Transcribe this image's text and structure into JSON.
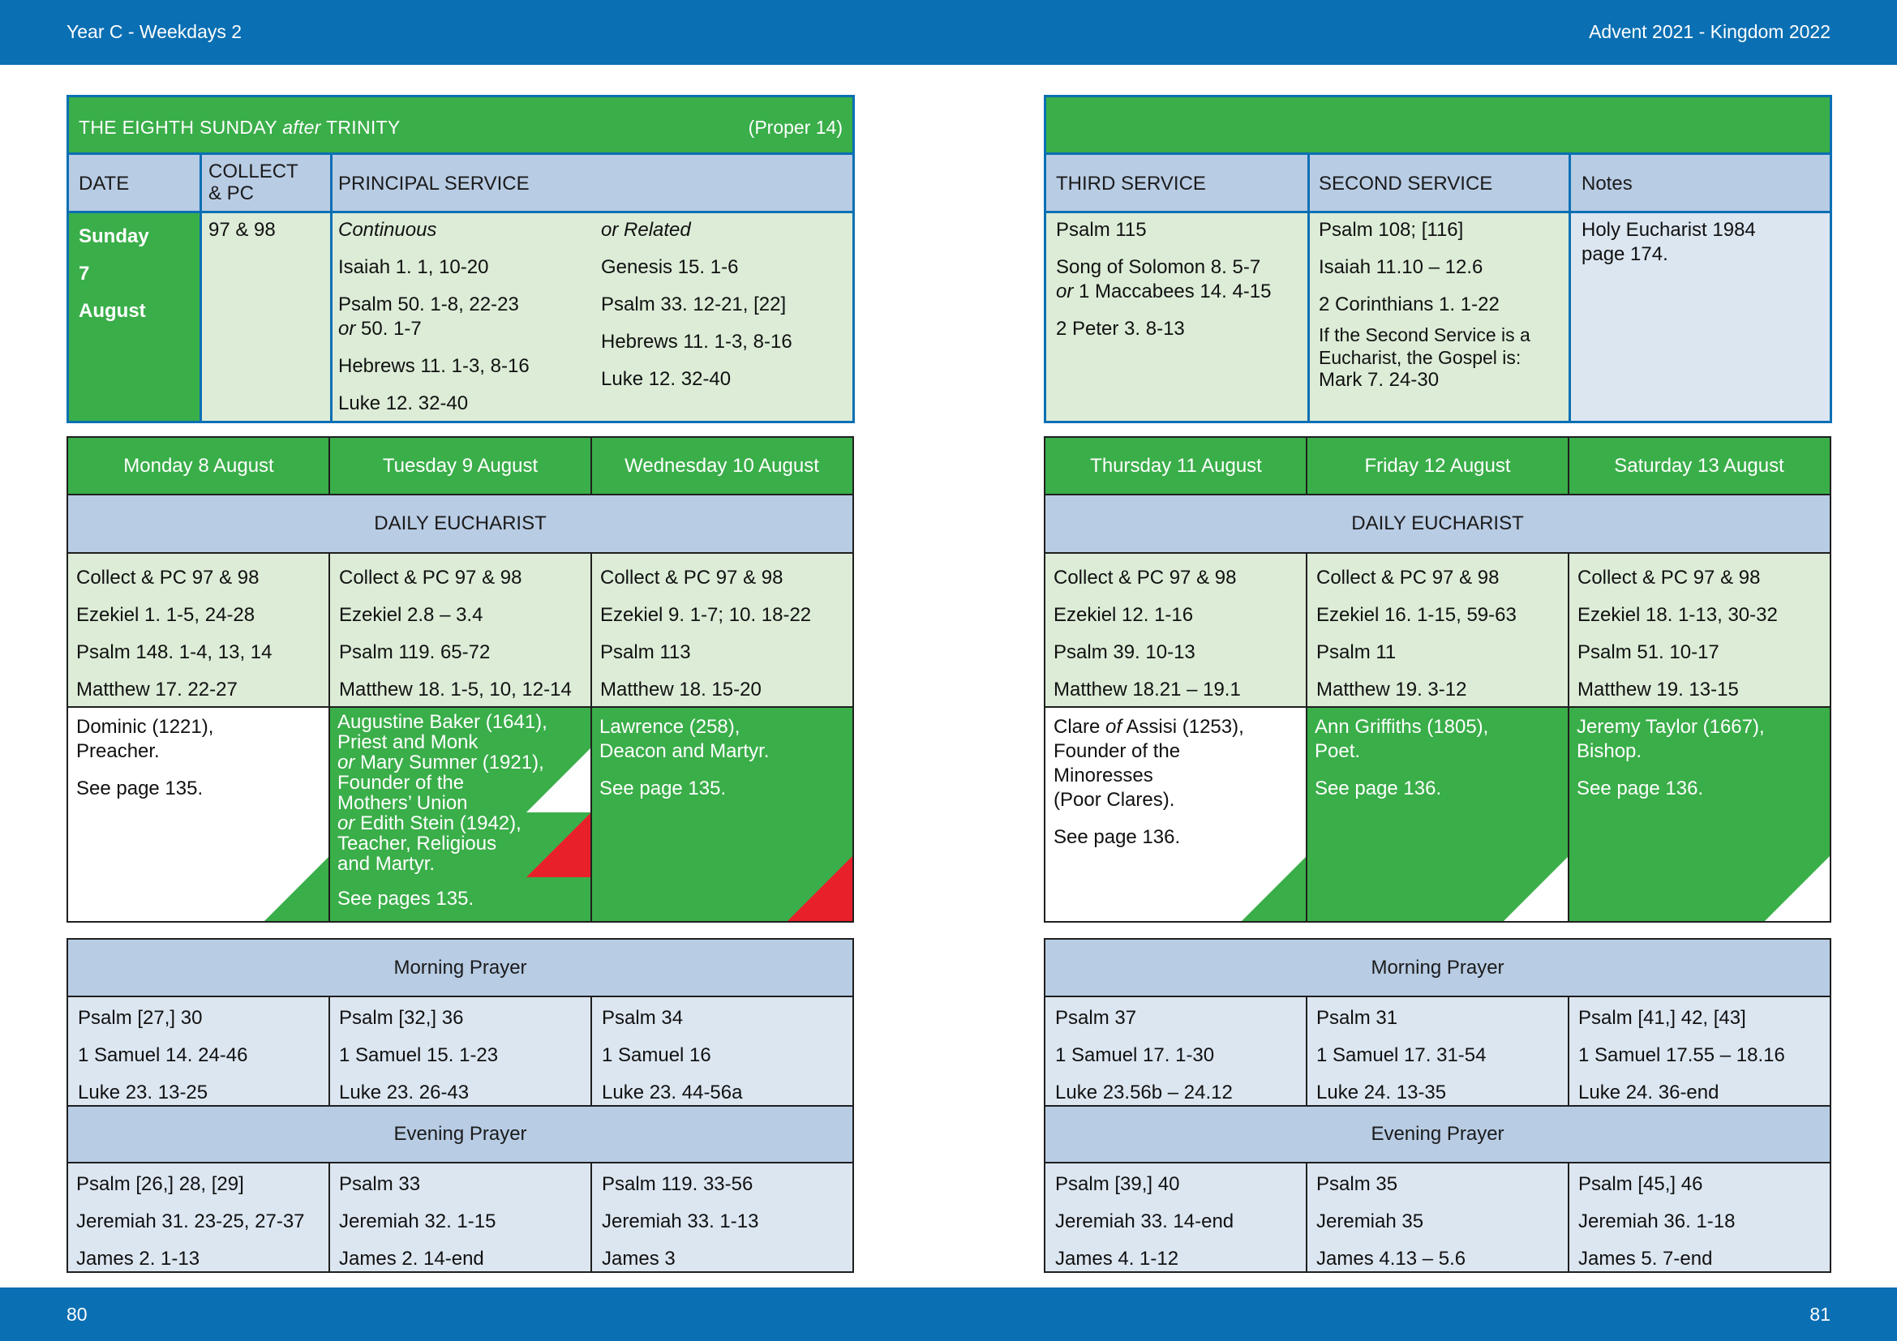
{
  "header": {
    "left": "Year C - Weekdays 2",
    "right": "Advent  2021 - Kingdom 2022"
  },
  "footer": {
    "left_page": "80",
    "right_page": "81"
  },
  "sunday": {
    "title_pre": "THE EIGHTH SUNDAY ",
    "title_after": "after",
    "title_post": " TRINITY",
    "proper": "(Proper 14)",
    "col_date": "DATE",
    "col_collect_1": "COLLECT",
    "col_collect_2": "& PC",
    "col_principal": "PRINCIPAL SERVICE",
    "date_1": "Sunday",
    "date_2": "7",
    "date_3": "August",
    "collect": "97 & 98",
    "continuous_head": "Continuous",
    "continuous": [
      "Isaiah 1. 1, 10-20",
      "Psalm 50. 1-8, 22-23",
      "Hebrews 11. 1-3, 8-16",
      "Luke 12. 32-40"
    ],
    "continuous_or": "or",
    "continuous_or_text": " 50. 1-7",
    "related_head": "or Related",
    "related": [
      "Genesis 15. 1-6",
      "Psalm 33. 12-21, [22]",
      "Hebrews 11. 1-3, 8-16",
      "Luke 12. 32-40"
    ],
    "col_third": "THIRD SERVICE",
    "col_second": "SECOND SERVICE",
    "col_notes": "Notes",
    "third": [
      "Psalm 115",
      "Song of Solomon 8. 5-7",
      "1 Maccabees 14. 4-15",
      "2 Peter 3. 8-13"
    ],
    "third_or": "or",
    "second": [
      "Psalm 108; [116]",
      "Isaiah 11.10 – 12.6",
      "2 Corinthians 1. 1-22"
    ],
    "second_note": [
      "If the Second Service is a",
      "Eucharist, the Gospel is:"
    ],
    "second_gospel": "Mark 7. 24-30",
    "notes": [
      "Holy Eucharist 1984",
      "page 174."
    ]
  },
  "daily_eucharist_label": "DAILY EUCHARIST",
  "morning_prayer_label": "Morning Prayer",
  "evening_prayer_label": "Evening Prayer",
  "days": [
    {
      "name": "Monday 8 August",
      "eucharist": [
        "Collect & PC 97 & 98",
        "Ezekiel 1. 1-5, 24-28",
        "Psalm 148. 1-4, 13, 14",
        "Matthew 17. 22-27"
      ],
      "commem": [
        "Dominic (1221),",
        "Preacher."
      ],
      "see": "See page 135.",
      "morning": [
        "Psalm [27,] 30",
        "1 Samuel 14. 24-46",
        "Luke 23. 13-25"
      ],
      "evening": [
        "Psalm [26,] 28, [29]",
        "Jeremiah 31. 23-25, 27-37",
        "James 2. 1-13"
      ]
    },
    {
      "name": "Tuesday 9 August",
      "eucharist": [
        "Collect & PC 97 & 98",
        "Ezekiel 2.8 – 3.4",
        "Psalm 119. 65-72",
        "Matthew 18. 1-5, 10, 12-14"
      ],
      "commem": [
        "Augustine Baker (1641),",
        "Priest and Monk",
        "Mary Sumner (1921),",
        "Founder of the",
        "Mothers’ Union",
        "Edith Stein (1942),",
        "Teacher, Religious",
        "and Martyr."
      ],
      "or_word": "or",
      "see": "See pages 135.",
      "morning": [
        "Psalm [32,] 36",
        "1 Samuel 15. 1-23",
        "Luke 23. 26-43"
      ],
      "evening": [
        "Psalm 33",
        "Jeremiah 32. 1-15",
        "James 2. 14-end"
      ]
    },
    {
      "name": "Wednesday 10 August",
      "eucharist": [
        "Collect & PC 97 & 98",
        "Ezekiel 9. 1-7; 10. 18-22",
        "Psalm 113",
        "Matthew 18. 15-20"
      ],
      "commem": [
        "Lawrence (258),",
        "Deacon and Martyr."
      ],
      "see": "See page 135.",
      "morning": [
        "Psalm 34",
        "1 Samuel 16",
        "Luke 23. 44-56a"
      ],
      "evening": [
        "Psalm 119. 33-56",
        "Jeremiah 33. 1-13",
        "James 3"
      ]
    },
    {
      "name": "Thursday 11 August",
      "eucharist": [
        "Collect & PC 97 & 98",
        "Ezekiel 12. 1-16",
        "Psalm 39. 10-13",
        "Matthew 18.21 – 19.1"
      ],
      "commem_pre": "Clare ",
      "commem_of": "of",
      "commem_post": " Assisi (1253),",
      "commem": [
        "Founder of the",
        "Minoresses",
        "(Poor Clares)."
      ],
      "see": "See page 136.",
      "morning": [
        "Psalm 37",
        "1 Samuel 17. 1-30",
        "Luke 23.56b – 24.12"
      ],
      "evening": [
        "Psalm [39,] 40",
        "Jeremiah 33. 14-end",
        "James 4. 1-12"
      ]
    },
    {
      "name": "Friday 12 August",
      "eucharist": [
        "Collect & PC 97 & 98",
        "Ezekiel 16. 1-15, 59-63",
        "Psalm 11",
        "Matthew 19. 3-12"
      ],
      "commem": [
        "Ann Griffiths (1805),",
        "Poet."
      ],
      "see": "See page 136.",
      "morning": [
        "Psalm 31",
        "1 Samuel 17. 31-54",
        "Luke 24. 13-35"
      ],
      "evening": [
        "Psalm 35",
        "Jeremiah 35",
        "James 4.13 – 5.6"
      ]
    },
    {
      "name": "Saturday 13 August",
      "eucharist": [
        "Collect & PC 97 & 98",
        "Ezekiel 18. 1-13, 30-32",
        "Psalm 51. 10-17",
        "Matthew 19. 13-15"
      ],
      "commem": [
        "Jeremy Taylor (1667),",
        "Bishop."
      ],
      "see": "See page 136.",
      "morning": [
        "Psalm [41,] 42, [43]",
        "1 Samuel 17.55 – 18.16",
        "Luke 24. 36-end"
      ],
      "evening": [
        "Psalm [45,] 46",
        "Jeremiah 36. 1-18",
        "James 5. 7-end"
      ]
    }
  ],
  "colors": {
    "band": "#0a6fb3",
    "green": "#3aae49",
    "light_green": "#dcecd7",
    "light_blue": "#dce6f1",
    "header_blue": "#b8cce4",
    "red": "#e8202a"
  }
}
